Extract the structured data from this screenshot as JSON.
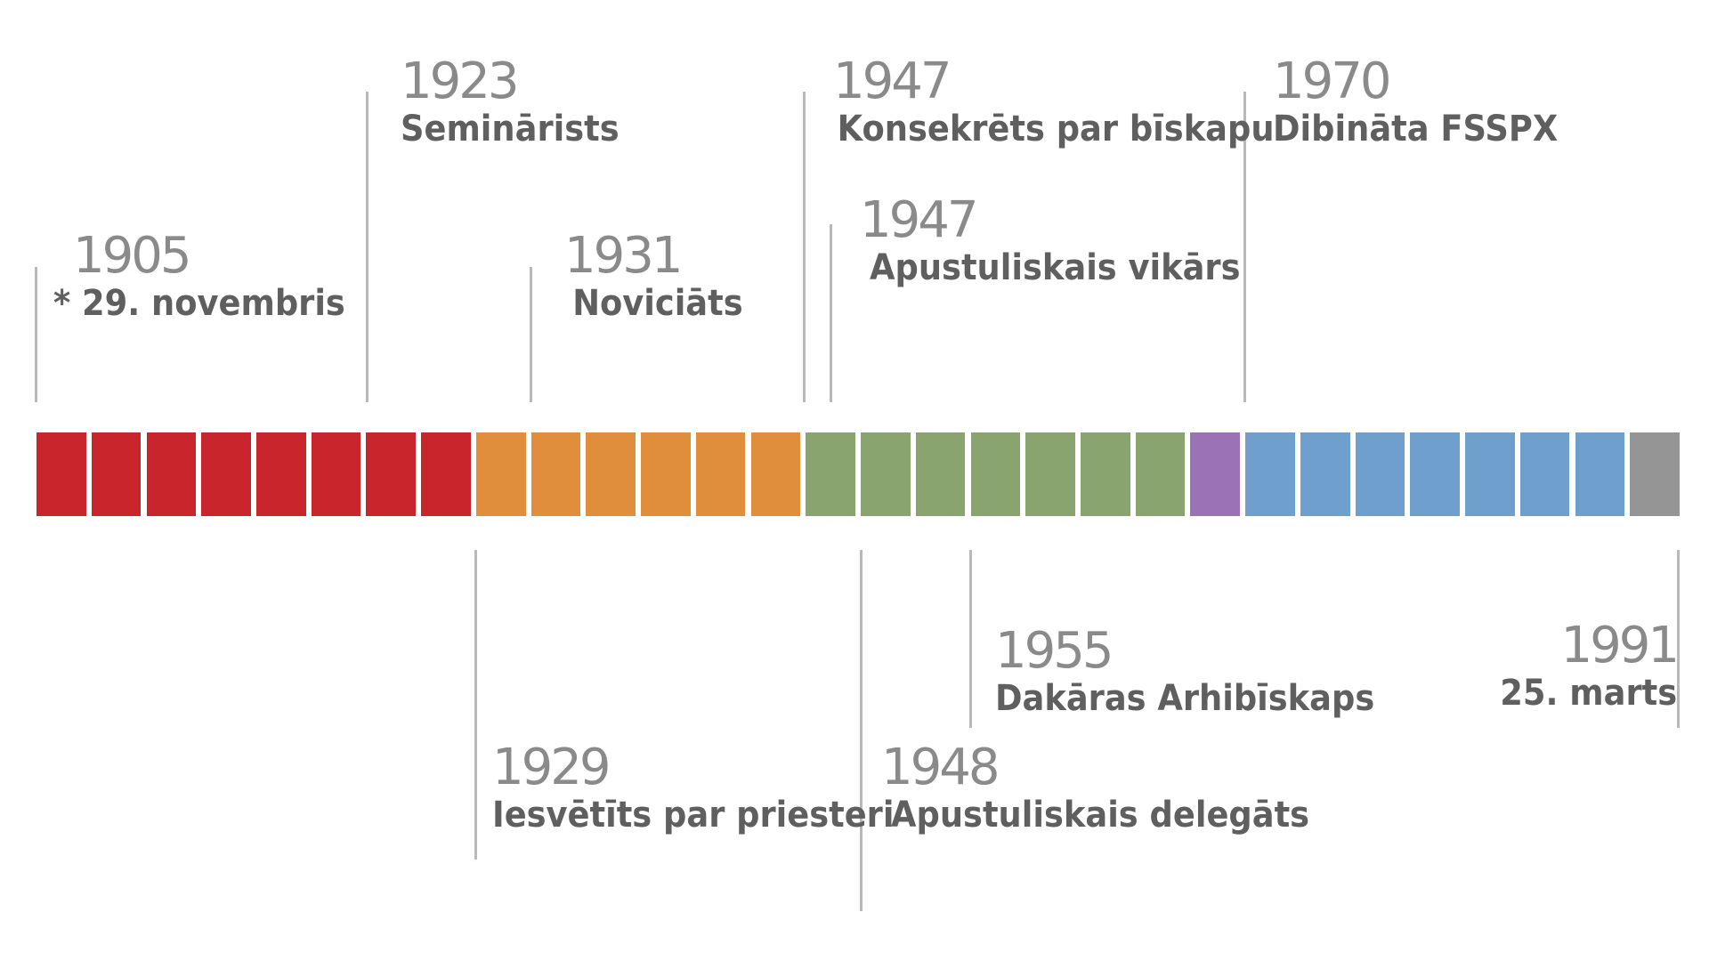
{
  "timeline": {
    "bar_colors": {
      "red": "#c8252d",
      "orange": "#e08d3c",
      "green": "#8aa46f",
      "purple": "#9b72b6",
      "blue": "#6f9fcc",
      "gray": "#959595"
    },
    "segment_groups": [
      {
        "color": "red",
        "count": 8
      },
      {
        "color": "orange",
        "count": 6
      },
      {
        "color": "green",
        "count": 7
      },
      {
        "color": "purple",
        "count": 1
      },
      {
        "color": "blue",
        "count": 7
      },
      {
        "color": "gray",
        "count": 1
      }
    ],
    "events": [
      {
        "year": "1905",
        "label": "* 29. novembris",
        "position": "above"
      },
      {
        "year": "1923",
        "label": "Seminārists",
        "position": "above"
      },
      {
        "year": "1929",
        "label": "Iesvētīts par priesteri",
        "position": "below"
      },
      {
        "year": "1931",
        "label": "Noviciāts",
        "position": "above"
      },
      {
        "year": "1947",
        "label": "Konsekrēts par bīskapu",
        "position": "above"
      },
      {
        "year": "1947",
        "label": "Apustuliskais vikārs",
        "position": "above"
      },
      {
        "year": "1948",
        "label": "Apustuliskais delegāts",
        "position": "below"
      },
      {
        "year": "1955",
        "label": "Dakāras Arhibīskaps",
        "position": "below"
      },
      {
        "year": "1970",
        "label": "Dibināta FSSPX",
        "position": "above"
      },
      {
        "year": "1991",
        "label": "25. marts",
        "position": "below"
      }
    ]
  }
}
